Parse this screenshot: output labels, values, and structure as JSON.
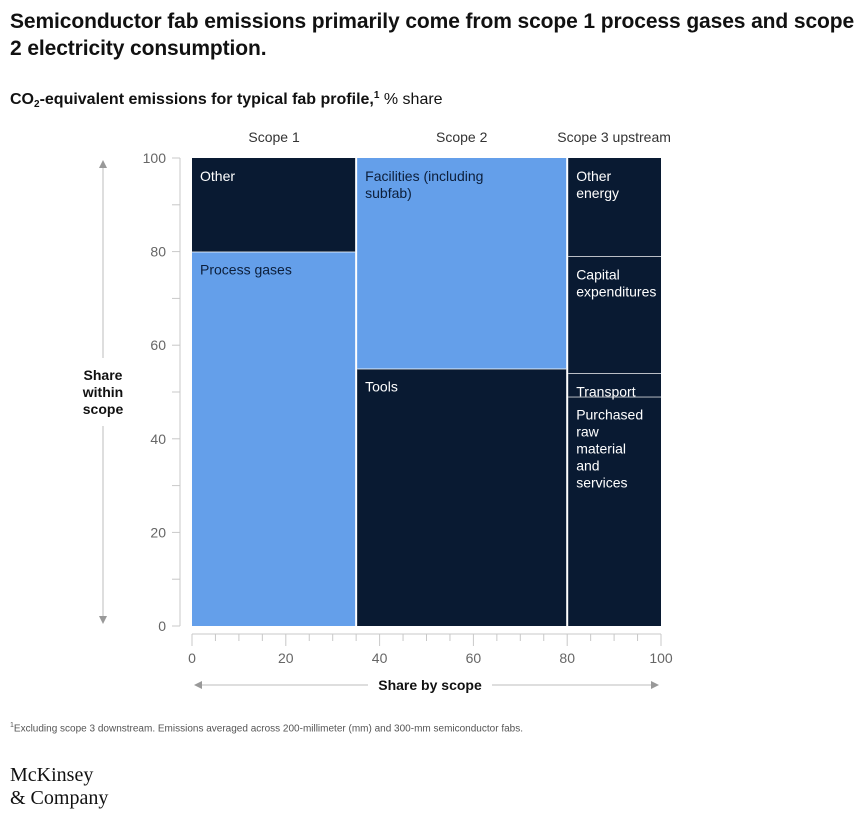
{
  "header": {
    "title": "Semiconductor fab emissions primarily come from scope 1 process gases and scope 2 electricity consumption.",
    "subtitle_bold_a": "CO",
    "subtitle_sub": "2",
    "subtitle_bold_b": "-equivalent emissions for typical fab profile,",
    "subtitle_sup": "1",
    "subtitle_rest": " % share"
  },
  "chart_data": {
    "type": "marimekko",
    "xlabel": "Share by scope",
    "ylabel": "Share within scope",
    "xlim": [
      0,
      100
    ],
    "ylim": [
      0,
      100
    ],
    "x_ticks": [
      0,
      20,
      40,
      60,
      80,
      100
    ],
    "y_ticks": [
      0,
      20,
      40,
      60,
      80,
      100
    ],
    "colors": {
      "light": "#649fea",
      "dark": "#091a32"
    },
    "columns": [
      {
        "name": "Scope 1",
        "x_start": 0,
        "x_end": 35,
        "segments": [
          {
            "label": "Process gases",
            "start": 0,
            "end": 80,
            "color": "light"
          },
          {
            "label": "Other",
            "start": 80,
            "end": 100,
            "color": "dark"
          }
        ]
      },
      {
        "name": "Scope 2",
        "x_start": 35,
        "x_end": 80,
        "segments": [
          {
            "label": "Tools",
            "start": 0,
            "end": 55,
            "color": "dark"
          },
          {
            "label": "Facilities (including subfab)",
            "start": 55,
            "end": 100,
            "color": "light"
          }
        ]
      },
      {
        "name": "Scope 3 upstream",
        "x_start": 80,
        "x_end": 100,
        "segments": [
          {
            "label": "Purchased raw material and services",
            "start": 0,
            "end": 49,
            "color": "dark"
          },
          {
            "label": "Transport",
            "start": 49,
            "end": 54,
            "color": "dark"
          },
          {
            "label": "Capital expenditures",
            "start": 54,
            "end": 79,
            "color": "dark"
          },
          {
            "label": "Other energy",
            "start": 79,
            "end": 100,
            "color": "dark"
          }
        ]
      }
    ]
  },
  "footnote": {
    "marker": "1",
    "text": "Excluding scope 3 downstream. Emissions averaged across 200-millimeter (mm) and 300-mm semiconductor fabs."
  },
  "brand": {
    "line1": "McKinsey",
    "line2": "& Company"
  }
}
